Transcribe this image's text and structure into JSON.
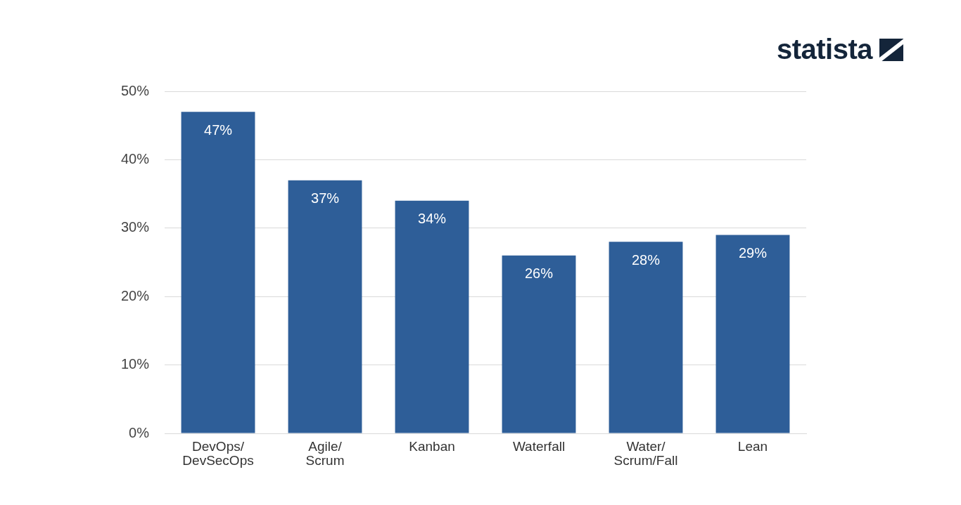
{
  "chart_data": {
    "type": "bar",
    "source": "statista",
    "categories": [
      "DevOps/DevSecOps",
      "Agile/Scrum",
      "Kanban",
      "Waterfall",
      "Water/Scrum/Fall",
      "Lean"
    ],
    "values": [
      47,
      37,
      34,
      26,
      28,
      29
    ],
    "value_labels": [
      "47%",
      "37%",
      "34%",
      "26%",
      "28%",
      "29%"
    ],
    "data_labels": true,
    "color": "#2e5e98",
    "ylim": [
      0,
      50
    ],
    "yticks": [
      {
        "value": 0,
        "label": "0%"
      },
      {
        "value": 10,
        "label": "10%"
      },
      {
        "value": 20,
        "label": "20%"
      },
      {
        "value": 30,
        "label": "30%"
      },
      {
        "value": 40,
        "label": "40%"
      },
      {
        "value": 50,
        "label": "50%"
      }
    ],
    "grid": true
  }
}
